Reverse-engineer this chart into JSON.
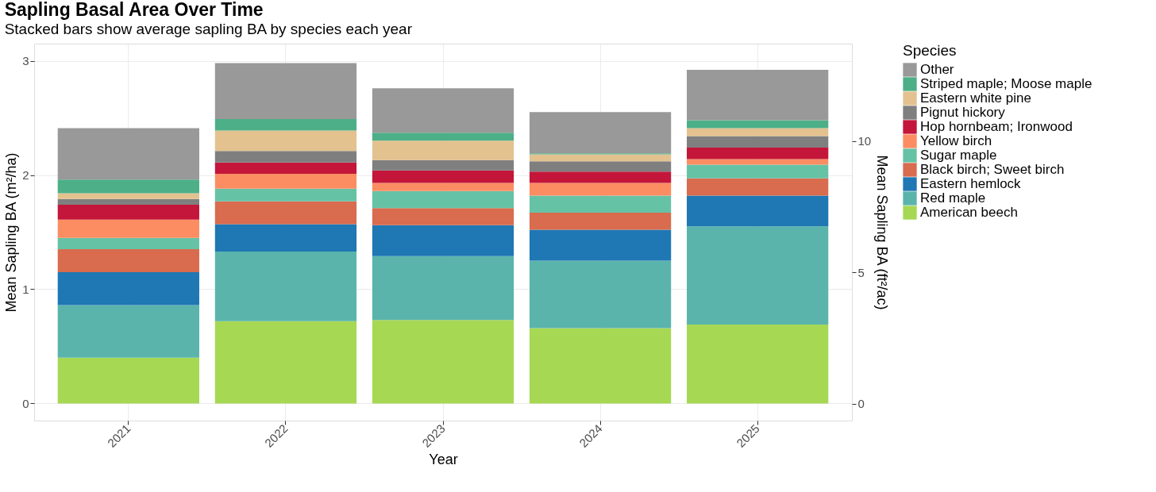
{
  "chart_data": {
    "type": "bar",
    "title": "Sapling Basal Area Over Time",
    "subtitle": "Stacked bars show average sapling BA by species each year",
    "xlabel": "Year",
    "ylabel": "Mean Sapling BA (m²/ha)",
    "y2label": "Mean Sapling BA (ft²/ac)",
    "legend_title": "Species",
    "stacked": true,
    "grid": true,
    "legend": "right",
    "categories": [
      "2021",
      "2022",
      "2023",
      "2024",
      "2025"
    ],
    "ylim": [
      -0.15,
      3.15
    ],
    "yticks": [
      0,
      1,
      2,
      3
    ],
    "y2lim": [
      -0.65,
      13.72
    ],
    "y2ticks": [
      0,
      5,
      10
    ],
    "series": [
      {
        "name": "American beech",
        "color": "#a6d854",
        "values": [
          0.4,
          0.72,
          0.73,
          0.66,
          0.69
        ]
      },
      {
        "name": "Red maple",
        "color": "#5ab4ac",
        "values": [
          0.46,
          0.61,
          0.56,
          0.59,
          0.86
        ]
      },
      {
        "name": "Eastern hemlock",
        "color": "#1f77b4",
        "values": [
          0.29,
          0.24,
          0.27,
          0.27,
          0.27
        ]
      },
      {
        "name": "Black birch; Sweet birch",
        "color": "#d96b4e",
        "values": [
          0.2,
          0.2,
          0.15,
          0.15,
          0.15
        ]
      },
      {
        "name": "Sugar maple",
        "color": "#66c2a5",
        "values": [
          0.1,
          0.11,
          0.15,
          0.15,
          0.12
        ]
      },
      {
        "name": "Yellow birch",
        "color": "#fc8d62",
        "values": [
          0.16,
          0.13,
          0.07,
          0.11,
          0.05
        ]
      },
      {
        "name": "Hop hornbeam; Ironwood",
        "color": "#c4163a",
        "values": [
          0.13,
          0.1,
          0.11,
          0.1,
          0.1
        ]
      },
      {
        "name": "Pignut hickory",
        "color": "#7f7f7f",
        "values": [
          0.05,
          0.1,
          0.09,
          0.09,
          0.1
        ]
      },
      {
        "name": "Eastern white pine",
        "color": "#e3c28f",
        "values": [
          0.05,
          0.18,
          0.17,
          0.06,
          0.07
        ]
      },
      {
        "name": "Striped maple; Moose maple",
        "color": "#4daf87",
        "values": [
          0.12,
          0.1,
          0.07,
          0.01,
          0.07
        ]
      },
      {
        "name": "Other",
        "color": "#999999",
        "values": [
          0.45,
          0.49,
          0.39,
          0.36,
          0.44
        ]
      }
    ]
  }
}
